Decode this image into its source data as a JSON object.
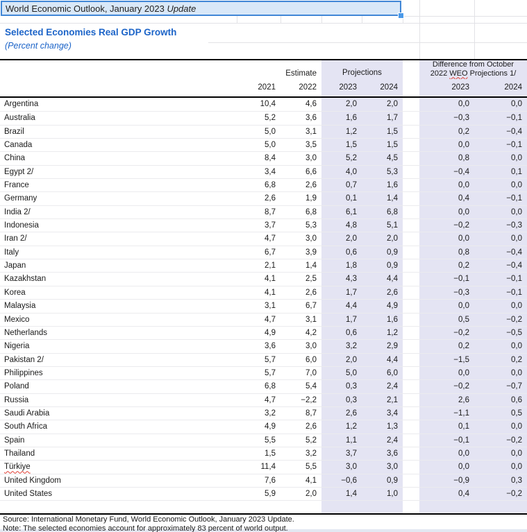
{
  "title_cell": {
    "text": "World Economic Outlook, January 2023 ",
    "emphasis": "Update"
  },
  "heading": {
    "title": "Selected Economies Real GDP Growth",
    "subtitle": "(Percent change)"
  },
  "table": {
    "header": {
      "estimate_label": "Estimate",
      "projections_label": "Projections",
      "difference_line1": "Difference from October",
      "difference_line2_pre": "2022 ",
      "difference_line2_misspelled": "WEO",
      "difference_line2_post": " Projections 1/",
      "years": [
        "2021",
        "2022",
        "2023",
        "2024"
      ],
      "diff_years": [
        "2023",
        "2024"
      ]
    },
    "rows": [
      {
        "name": "Argentina",
        "values": [
          "10,4",
          "4,6",
          "2,0",
          "2,0",
          "0,0",
          "0,0"
        ]
      },
      {
        "name": "Australia",
        "values": [
          "5,2",
          "3,6",
          "1,6",
          "1,7",
          "−0,3",
          "−0,1"
        ]
      },
      {
        "name": "Brazil",
        "values": [
          "5,0",
          "3,1",
          "1,2",
          "1,5",
          "0,2",
          "−0,4"
        ]
      },
      {
        "name": "Canada",
        "values": [
          "5,0",
          "3,5",
          "1,5",
          "1,5",
          "0,0",
          "−0,1"
        ]
      },
      {
        "name": "China",
        "values": [
          "8,4",
          "3,0",
          "5,2",
          "4,5",
          "0,8",
          "0,0"
        ]
      },
      {
        "name": "Egypt 2/",
        "values": [
          "3,4",
          "6,6",
          "4,0",
          "5,3",
          "−0,4",
          "0,1"
        ]
      },
      {
        "name": "France",
        "values": [
          "6,8",
          "2,6",
          "0,7",
          "1,6",
          "0,0",
          "0,0"
        ]
      },
      {
        "name": "Germany",
        "values": [
          "2,6",
          "1,9",
          "0,1",
          "1,4",
          "0,4",
          "−0,1"
        ]
      },
      {
        "name": "India 2/",
        "values": [
          "8,7",
          "6,8",
          "6,1",
          "6,8",
          "0,0",
          "0,0"
        ]
      },
      {
        "name": "Indonesia",
        "values": [
          "3,7",
          "5,3",
          "4,8",
          "5,1",
          "−0,2",
          "−0,3"
        ]
      },
      {
        "name": "Iran 2/",
        "values": [
          "4,7",
          "3,0",
          "2,0",
          "2,0",
          "0,0",
          "0,0"
        ]
      },
      {
        "name": "Italy",
        "values": [
          "6,7",
          "3,9",
          "0,6",
          "0,9",
          "0,8",
          "−0,4"
        ]
      },
      {
        "name": "Japan",
        "values": [
          "2,1",
          "1,4",
          "1,8",
          "0,9",
          "0,2",
          "−0,4"
        ]
      },
      {
        "name": "Kazakhstan",
        "values": [
          "4,1",
          "2,5",
          "4,3",
          "4,4",
          "−0,1",
          "−0,1"
        ]
      },
      {
        "name": "Korea",
        "values": [
          "4,1",
          "2,6",
          "1,7",
          "2,6",
          "−0,3",
          "−0,1"
        ]
      },
      {
        "name": "Malaysia",
        "values": [
          "3,1",
          "6,7",
          "4,4",
          "4,9",
          "0,0",
          "0,0"
        ]
      },
      {
        "name": "Mexico",
        "values": [
          "4,7",
          "3,1",
          "1,7",
          "1,6",
          "0,5",
          "−0,2"
        ]
      },
      {
        "name": "Netherlands",
        "values": [
          "4,9",
          "4,2",
          "0,6",
          "1,2",
          "−0,2",
          "−0,5"
        ]
      },
      {
        "name": "Nigeria",
        "values": [
          "3,6",
          "3,0",
          "3,2",
          "2,9",
          "0,2",
          "0,0"
        ]
      },
      {
        "name": "Pakistan 2/",
        "values": [
          "5,7",
          "6,0",
          "2,0",
          "4,4",
          "−1,5",
          "0,2"
        ]
      },
      {
        "name": "Philippines",
        "values": [
          "5,7",
          "7,0",
          "5,0",
          "6,0",
          "0,0",
          "0,0"
        ]
      },
      {
        "name": "Poland",
        "values": [
          "6,8",
          "5,4",
          "0,3",
          "2,4",
          "−0,2",
          "−0,7"
        ]
      },
      {
        "name": "Russia",
        "values": [
          "4,7",
          "−2,2",
          "0,3",
          "2,1",
          "2,6",
          "0,6"
        ]
      },
      {
        "name": "Saudi Arabia",
        "values": [
          "3,2",
          "8,7",
          "2,6",
          "3,4",
          "−1,1",
          "0,5"
        ]
      },
      {
        "name": "South Africa",
        "values": [
          "4,9",
          "2,6",
          "1,2",
          "1,3",
          "0,1",
          "0,0"
        ]
      },
      {
        "name": "Spain",
        "values": [
          "5,5",
          "5,2",
          "1,1",
          "2,4",
          "−0,1",
          "−0,2"
        ]
      },
      {
        "name": "Thailand",
        "values": [
          "1,5",
          "3,2",
          "3,7",
          "3,6",
          "0,0",
          "0,0"
        ]
      },
      {
        "name": "Türkiye",
        "misspelled": true,
        "values": [
          "11,4",
          "5,5",
          "3,0",
          "3,0",
          "0,0",
          "0,0"
        ]
      },
      {
        "name": "United Kingdom",
        "values": [
          "7,6",
          "4,1",
          "−0,6",
          "0,9",
          "−0,9",
          "0,3"
        ]
      },
      {
        "name": "United States",
        "values": [
          "5,9",
          "2,0",
          "1,4",
          "1,0",
          "0,4",
          "−0,2"
        ]
      }
    ]
  },
  "footer": {
    "source": "Source: International Monetary Fund, World Economic Outlook, January 2023 Update.",
    "note": "Note: The selected economies account for approximately 83 percent of world output."
  },
  "colors": {
    "accent_blue": "#1c64c8",
    "selection_border": "#4187d6",
    "selection_fill": "#d9e8f8",
    "projection_band": "#e4e4f3",
    "squiggle_red": "#e03c31"
  }
}
